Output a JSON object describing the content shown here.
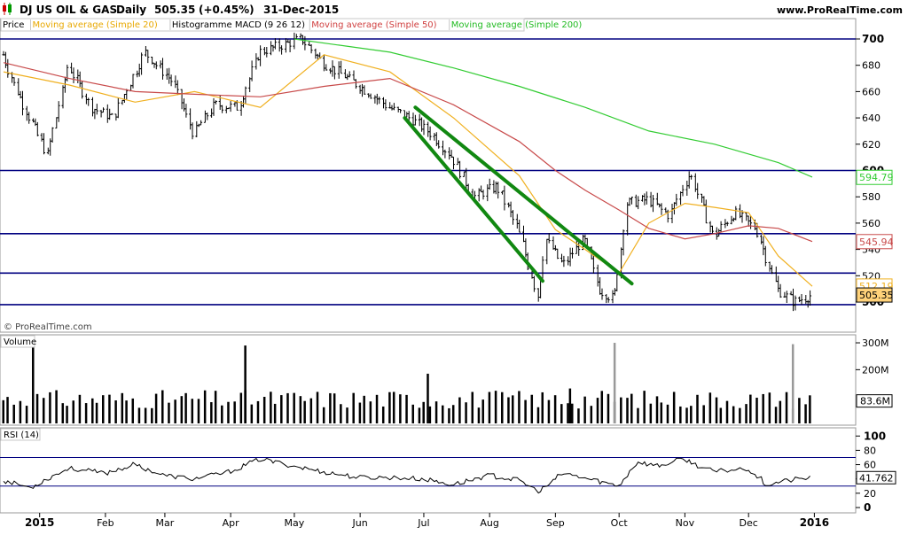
{
  "header": {
    "title": "DJ US OIL & GAS",
    "period": "Daily",
    "price": "505.35",
    "change": "(+0.45%)",
    "date": "31-Dec-2015",
    "site": "www.ProRealTime.com"
  },
  "legend": [
    {
      "label": "Price",
      "color": "#000000"
    },
    {
      "label": "Moving average (Simple 20)",
      "color": "#e8a800"
    },
    {
      "label": "Histogramme MACD (9 26 12)",
      "color": "#000000"
    },
    {
      "label": "Moving average (Simple 50)",
      "color": "#d04040"
    },
    {
      "label": "Moving average (Simple 200)",
      "color": "#22bb22"
    }
  ],
  "watermark": "© ProRealTime.com",
  "volume_label": "Volume",
  "rsi_label": "RSI (14)",
  "colors": {
    "price": "#000000",
    "sma20": "#f0b020",
    "sma50": "#c84a4a",
    "sma200": "#33cc33",
    "trendline": "#118811",
    "hline": "#000080",
    "volume": "#000000",
    "volume_spike": "#999999"
  },
  "chart_data": [
    {
      "type": "line",
      "panel": "price",
      "title": "DJ US OIL & GAS Daily",
      "x_range": [
        "2014-12-15",
        "2015-12-31"
      ],
      "ylim": [
        494,
        702
      ],
      "y_ticks": [
        500,
        520,
        540,
        560,
        580,
        600,
        620,
        640,
        660,
        680,
        700
      ],
      "x_ticks": [
        "2015",
        "Feb",
        "Mar",
        "Apr",
        "May",
        "Jun",
        "Jul",
        "Aug",
        "Sep",
        "Oct",
        "Nov",
        "Dec",
        "2016"
      ],
      "x_tick_dates": [
        "2015-01-01",
        "2015-02-01",
        "2015-03-01",
        "2015-04-01",
        "2015-05-01",
        "2015-06-01",
        "2015-07-01",
        "2015-08-01",
        "2015-09-01",
        "2015-10-01",
        "2015-11-01",
        "2015-12-01",
        "2016-01-01"
      ],
      "price_series": {
        "name": "Price",
        "x": [
          "2014-12-15",
          "2014-12-22",
          "2015-01-05",
          "2015-01-15",
          "2015-01-26",
          "2015-02-05",
          "2015-02-20",
          "2015-03-05",
          "2015-03-15",
          "2015-03-25",
          "2015-04-05",
          "2015-04-15",
          "2015-04-25",
          "2015-05-05",
          "2015-05-15",
          "2015-05-25",
          "2015-06-05",
          "2015-06-15",
          "2015-06-25",
          "2015-07-05",
          "2015-07-15",
          "2015-07-25",
          "2015-08-05",
          "2015-08-15",
          "2015-08-24",
          "2015-08-28",
          "2015-09-05",
          "2015-09-15",
          "2015-09-22",
          "2015-09-29",
          "2015-10-05",
          "2015-10-15",
          "2015-10-25",
          "2015-11-04",
          "2015-11-15",
          "2015-11-25",
          "2015-12-05",
          "2015-12-15",
          "2015-12-23",
          "2015-12-31"
        ],
        "y": [
          688,
          660,
          612,
          680,
          648,
          640,
          690,
          668,
          628,
          650,
          648,
          690,
          695,
          700,
          682,
          672,
          660,
          648,
          640,
          628,
          610,
          580,
          588,
          555,
          505,
          548,
          528,
          548,
          510,
          502,
          575,
          578,
          566,
          598,
          550,
          568,
          556,
          510,
          500,
          505
        ]
      },
      "price_extra": {
        "first_bar_date": "2014-12-15",
        "bar_interval_days": 1.4
      },
      "series": [
        {
          "name": "Moving average (Simple 20)",
          "x": [
            "2014-12-15",
            "2015-01-15",
            "2015-02-15",
            "2015-03-15",
            "2015-04-15",
            "2015-05-15",
            "2015-06-15",
            "2015-07-15",
            "2015-08-15",
            "2015-09-01",
            "2015-09-15",
            "2015-10-01",
            "2015-10-15",
            "2015-11-01",
            "2015-11-15",
            "2015-12-01",
            "2015-12-15",
            "2015-12-31"
          ],
          "y": [
            675,
            665,
            652,
            660,
            648,
            688,
            675,
            640,
            596,
            555,
            540,
            522,
            560,
            575,
            572,
            568,
            535,
            512
          ]
        },
        {
          "name": "Moving average (Simple 50)",
          "x": [
            "2014-12-15",
            "2015-01-15",
            "2015-02-15",
            "2015-03-15",
            "2015-04-15",
            "2015-05-15",
            "2015-06-15",
            "2015-07-15",
            "2015-08-15",
            "2015-09-01",
            "2015-09-15",
            "2015-10-01",
            "2015-10-15",
            "2015-11-01",
            "2015-11-15",
            "2015-12-01",
            "2015-12-15",
            "2015-12-31"
          ],
          "y": [
            682,
            670,
            660,
            658,
            656,
            664,
            670,
            650,
            622,
            600,
            585,
            570,
            556,
            548,
            552,
            558,
            556,
            546
          ]
        },
        {
          "name": "Moving average (Simple 200)",
          "x": [
            "2015-05-01",
            "2015-06-15",
            "2015-07-15",
            "2015-08-15",
            "2015-09-15",
            "2015-10-15",
            "2015-11-15",
            "2015-12-15",
            "2015-12-31"
          ],
          "y": [
            700,
            690,
            678,
            664,
            648,
            630,
            620,
            606,
            595
          ]
        }
      ],
      "horizontal_lines": [
        700,
        600,
        552,
        522,
        498
      ],
      "trendlines": [
        {
          "x": [
            "2015-06-22",
            "2015-08-26"
          ],
          "y": [
            640,
            516
          ]
        },
        {
          "x": [
            "2015-06-27",
            "2015-10-07"
          ],
          "y": [
            648,
            514
          ]
        }
      ],
      "value_labels": [
        {
          "text": "594.79",
          "value": 594.79,
          "color": "#33cc33"
        },
        {
          "text": "545.94",
          "value": 545.94,
          "color": "#c84a4a"
        },
        {
          "text": "512.19",
          "value": 512.19,
          "color": "#f0b020"
        },
        {
          "text": "505.35",
          "value": 505.35,
          "color": "#000000"
        }
      ]
    },
    {
      "type": "bar",
      "panel": "volume",
      "name": "Volume",
      "ylim": [
        0,
        310
      ],
      "unit": "M",
      "y_ticks": [
        "300M",
        "200M"
      ],
      "base_level": 100,
      "spikes": [
        {
          "x": "2014-12-29",
          "value": 300
        },
        {
          "x": "2015-04-08",
          "value": 290
        },
        {
          "x": "2015-07-03",
          "value": 185
        },
        {
          "x": "2015-09-08",
          "value": 130
        },
        {
          "x": "2015-09-29",
          "value": 300
        },
        {
          "x": "2015-12-22",
          "value": 295
        }
      ],
      "value_labels": [
        {
          "text": "83.6M",
          "value": 83.6
        }
      ]
    },
    {
      "type": "line",
      "panel": "rsi",
      "name": "RSI (14)",
      "ylim": [
        0,
        100
      ],
      "y_ticks": [
        100,
        80,
        60,
        40,
        20,
        0
      ],
      "levels": [
        70,
        30
      ],
      "x": [
        "2014-12-15",
        "2014-12-28",
        "2015-01-15",
        "2015-02-01",
        "2015-02-15",
        "2015-03-01",
        "2015-03-15",
        "2015-04-01",
        "2015-04-15",
        "2015-05-01",
        "2015-05-15",
        "2015-06-01",
        "2015-06-15",
        "2015-07-01",
        "2015-07-15",
        "2015-08-01",
        "2015-08-15",
        "2015-08-25",
        "2015-09-05",
        "2015-09-20",
        "2015-10-01",
        "2015-10-10",
        "2015-10-20",
        "2015-11-01",
        "2015-11-05",
        "2015-11-15",
        "2015-12-01",
        "2015-12-10",
        "2015-12-20",
        "2015-12-31"
      ],
      "y": [
        38,
        28,
        55,
        48,
        60,
        45,
        40,
        50,
        68,
        58,
        50,
        42,
        42,
        40,
        32,
        45,
        38,
        22,
        48,
        38,
        30,
        64,
        58,
        68,
        62,
        50,
        55,
        32,
        38,
        41.762
      ],
      "value_labels": [
        {
          "text": "41.762",
          "value": 41.762
        }
      ]
    }
  ]
}
